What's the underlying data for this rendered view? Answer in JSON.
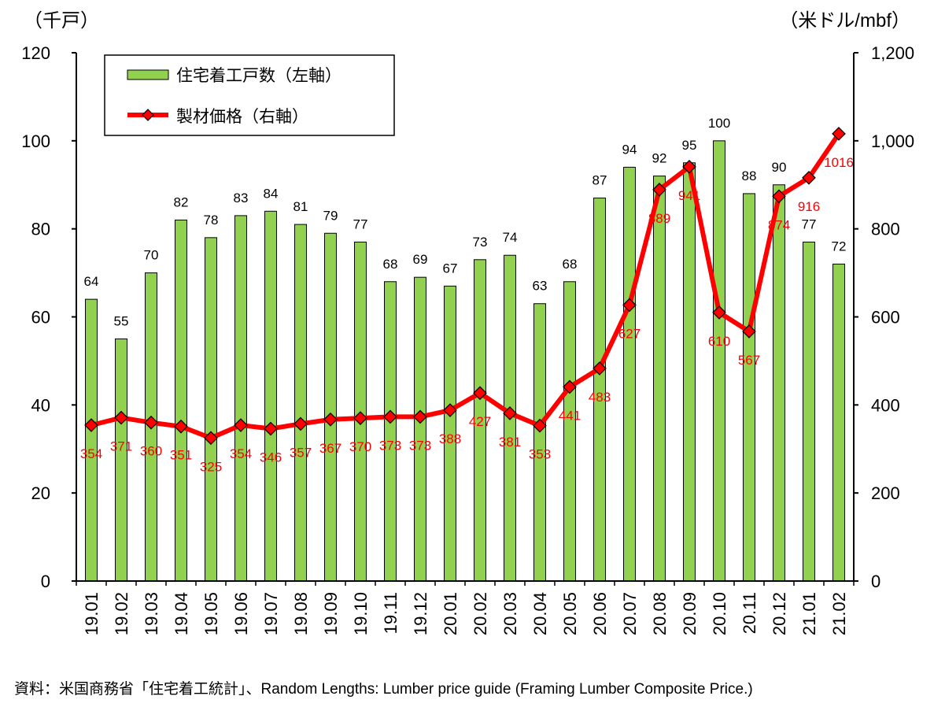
{
  "chart_data": {
    "type": "bar+line",
    "categories": [
      "19.01",
      "19.02",
      "19.03",
      "19.04",
      "19.05",
      "19.06",
      "19.07",
      "19.08",
      "19.09",
      "19.10",
      "19.11",
      "19.12",
      "20.01",
      "20.02",
      "20.03",
      "20.04",
      "20.05",
      "20.06",
      "20.07",
      "20.08",
      "20.09",
      "20.10",
      "20.11",
      "20.12",
      "21.01",
      "21.02"
    ],
    "series": [
      {
        "name": "住宅着工戸数（左軸）",
        "type": "bar",
        "axis": "left",
        "color": "#92d050",
        "values": [
          64,
          55,
          70,
          82,
          78,
          83,
          84,
          81,
          79,
          77,
          68,
          69,
          67,
          73,
          74,
          63,
          68,
          87,
          94,
          92,
          95,
          100,
          88,
          90,
          77,
          72
        ],
        "labels": [
          "64",
          "55",
          "70",
          "82",
          "78",
          "83",
          "84",
          "81",
          "79",
          "77",
          "68",
          "69",
          "67",
          "73",
          "74",
          "63",
          "68",
          "87",
          "94",
          "92",
          "95",
          "100",
          "88",
          "90",
          "77",
          "72"
        ]
      },
      {
        "name": "製材価格（右軸）",
        "type": "line",
        "axis": "right",
        "color": "#ff0000",
        "values": [
          354,
          371,
          360,
          351,
          325,
          354,
          346,
          357,
          367,
          370,
          373,
          373,
          388,
          427,
          381,
          353,
          441,
          483,
          627,
          889,
          941,
          610,
          567,
          874,
          916,
          1016
        ],
        "labels": [
          "354",
          "371",
          "360",
          "351",
          "325",
          "354",
          "346",
          "357",
          "367",
          "370",
          "373",
          "373",
          "388",
          "427",
          "381",
          "353",
          "441",
          "483",
          "627",
          "889",
          "941",
          "610",
          "567",
          "874",
          "916",
          "1016"
        ]
      }
    ],
    "y_left": {
      "unit": "（千戸）",
      "min": 0,
      "max": 120,
      "ticks": [
        0,
        20,
        40,
        60,
        80,
        100,
        120
      ],
      "tick_labels": [
        "0",
        "20",
        "40",
        "60",
        "80",
        "100",
        "120"
      ]
    },
    "y_right": {
      "unit": "（米ドル/mbf）",
      "min": 0,
      "max": 1200,
      "ticks": [
        0,
        200,
        400,
        600,
        800,
        1000,
        1200
      ],
      "tick_labels": [
        "0",
        "200",
        "400",
        "600",
        "800",
        "1,000",
        "1,200"
      ]
    },
    "legend_position": "top-left"
  },
  "source": "資料：米国商務省「住宅着工統計」、Random Lengths: Lumber price guide (Framing Lumber Composite Price.)"
}
